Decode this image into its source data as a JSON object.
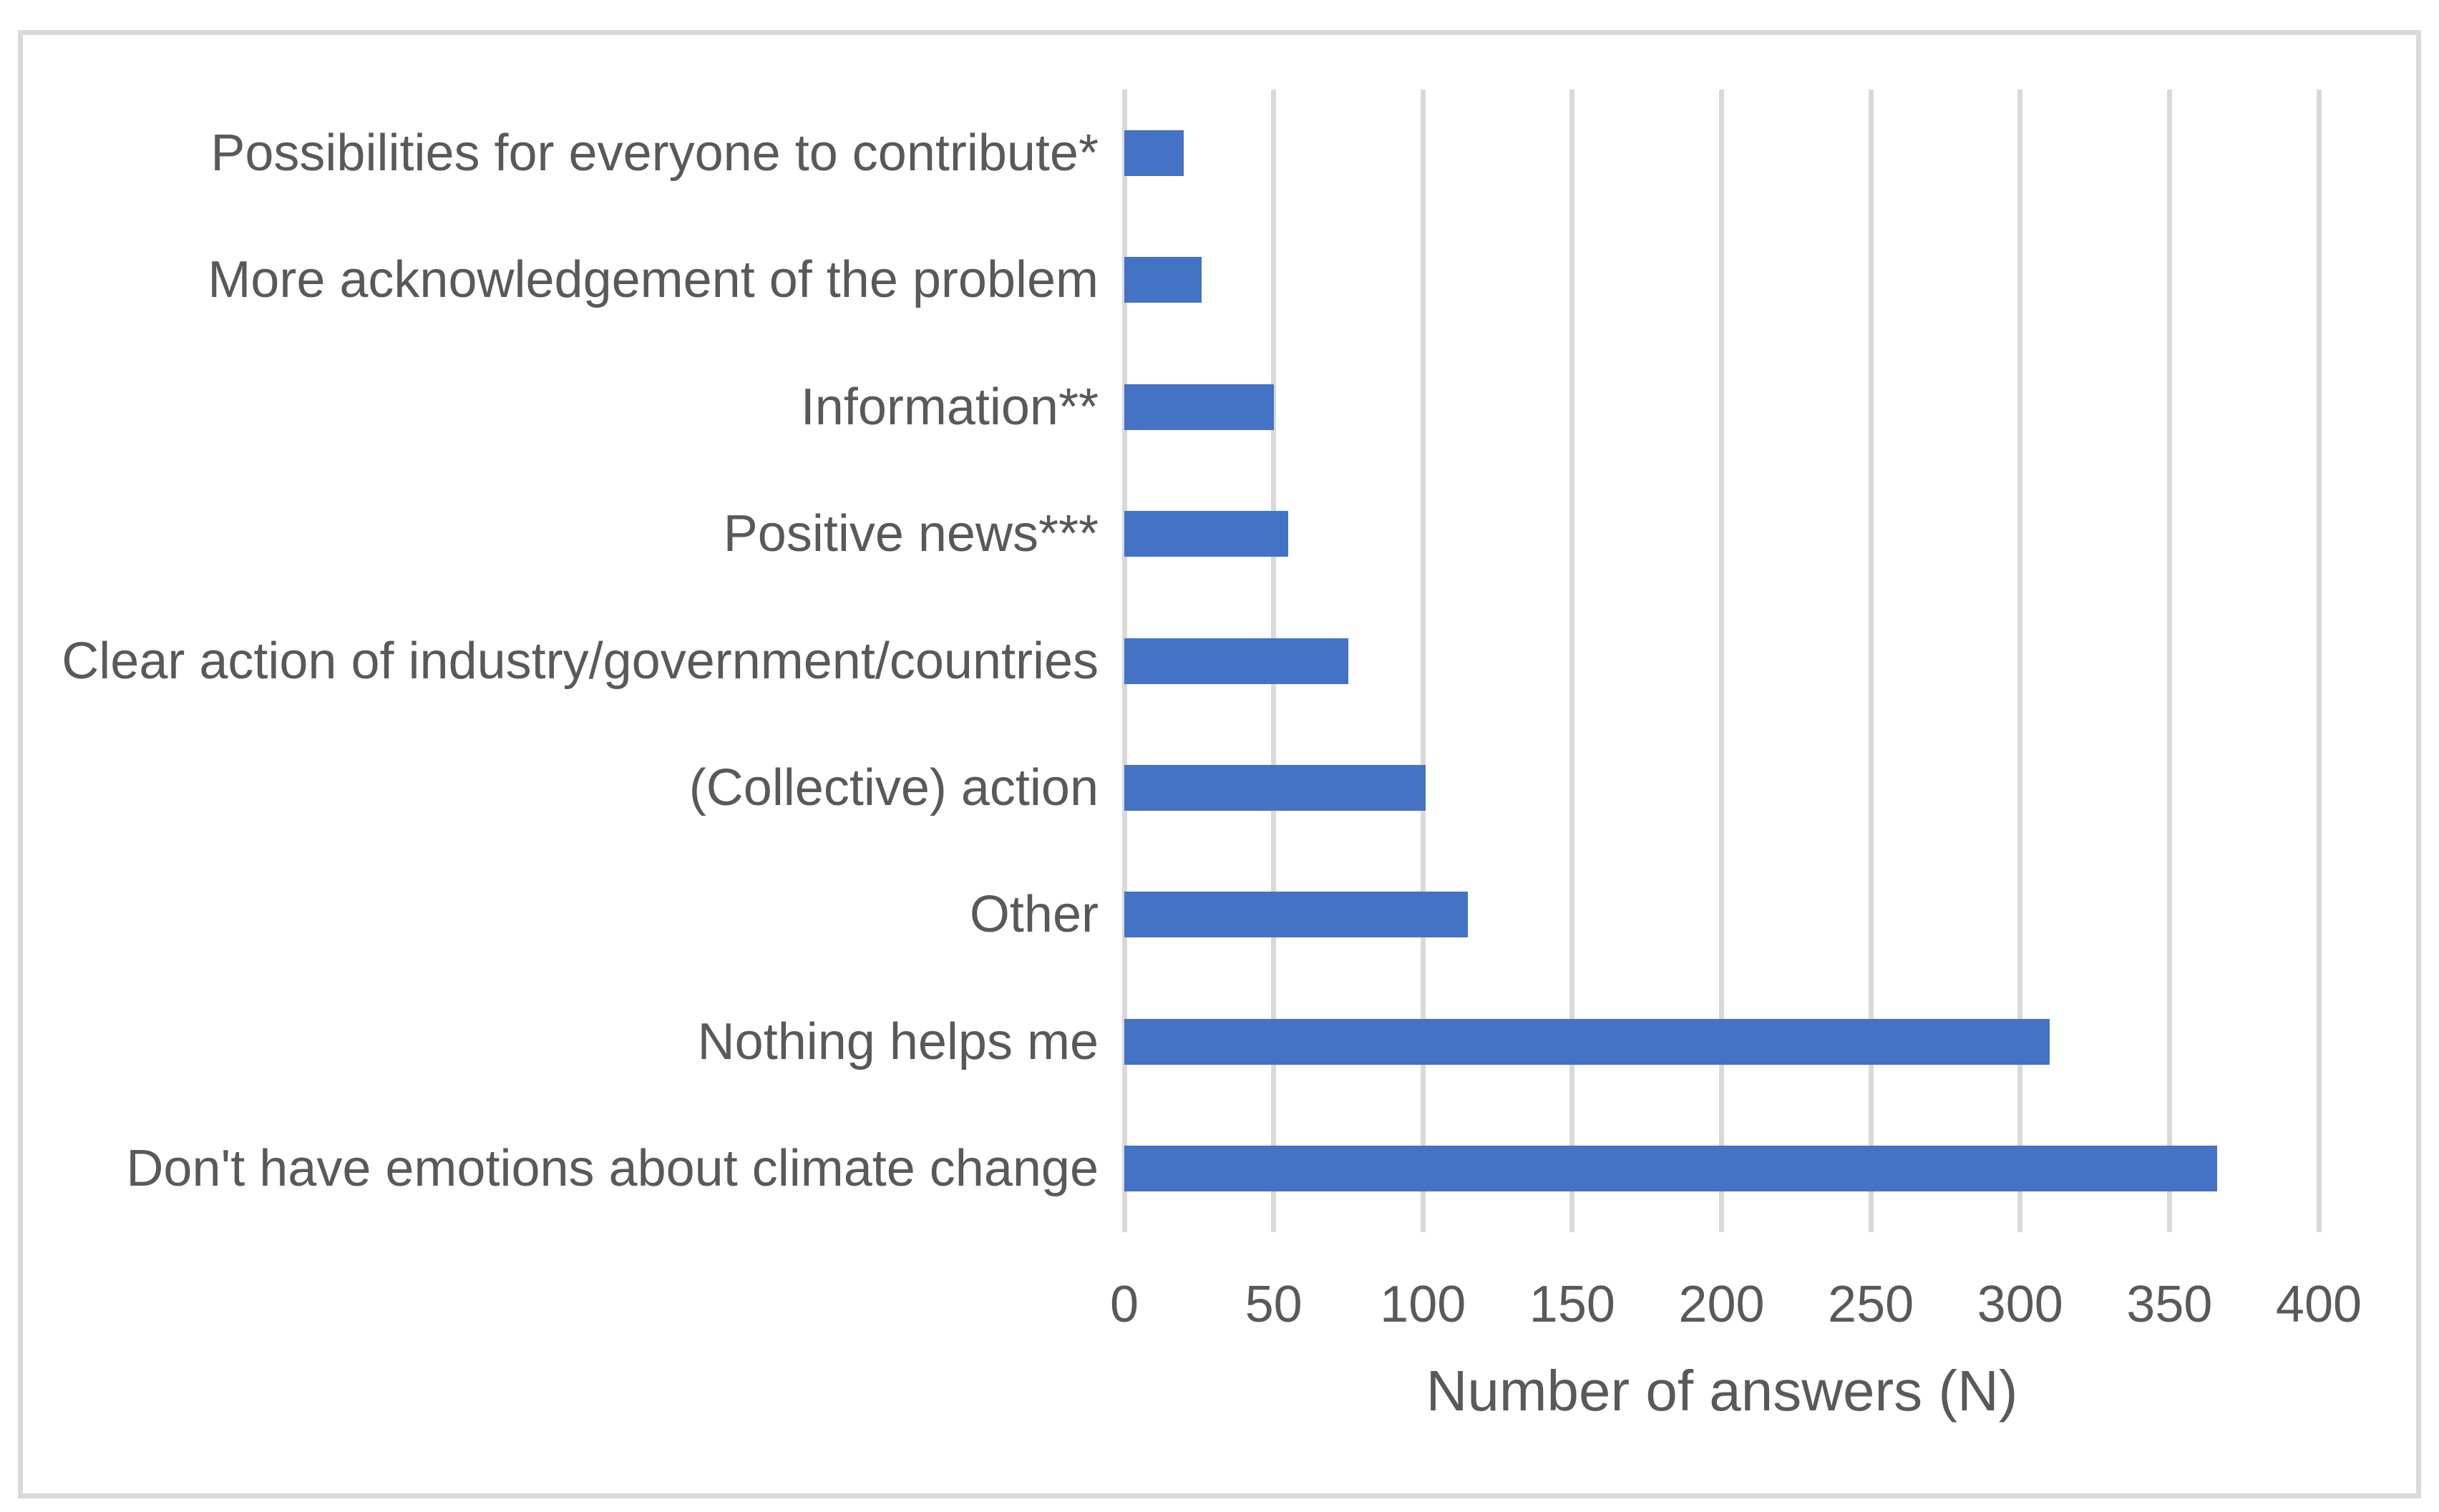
{
  "chart_data": {
    "type": "bar",
    "orientation": "horizontal",
    "title": "",
    "xlabel": "Number of answers (N)",
    "ylabel": "",
    "categories": [
      "Possibilities for everyone to contribute*",
      "More acknowledgement of the problem",
      "Information**",
      "Positive news***",
      "Clear action of industry/government/countries",
      "(Collective) action",
      "Other",
      "Nothing helps me",
      "Don't have emotions about climate change"
    ],
    "values": [
      20,
      26,
      50,
      55,
      75,
      101,
      115,
      310,
      366
    ],
    "xlim": [
      0,
      400
    ],
    "xticks": [
      0,
      50,
      100,
      150,
      200,
      250,
      300,
      350,
      400
    ],
    "grid": "vertical",
    "legend": "none",
    "colors": {
      "bar": "#4472C4",
      "gridline": "#D9D9D9",
      "text": "#595959",
      "border": "#D9D9D9"
    }
  }
}
